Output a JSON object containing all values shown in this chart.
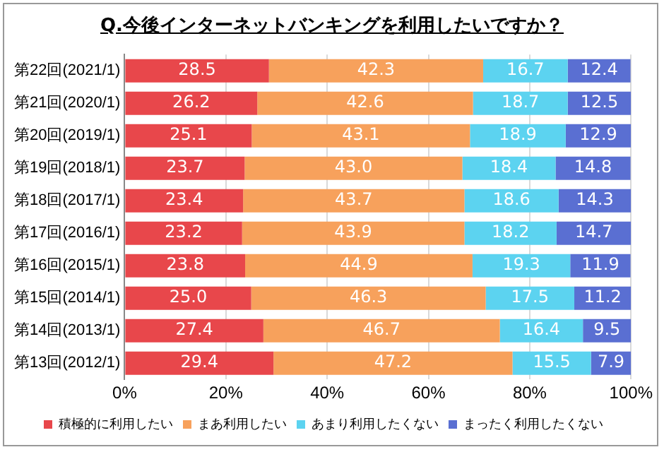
{
  "chart_data": {
    "type": "bar",
    "orientation": "horizontal",
    "stacked": true,
    "title": "Q.今後インターネットバンキングを利用したいですか？",
    "categories": [
      "第22回(2021/1)",
      "第21回(2020/1)",
      "第20回(2019/1)",
      "第19回(2018/1)",
      "第18回(2017/1)",
      "第17回(2016/1)",
      "第16回(2015/1)",
      "第15回(2014/1)",
      "第14回(2013/1)",
      "第13回(2012/1)"
    ],
    "series": [
      {
        "name": "積極的に利用したい",
        "color": "#e8474b",
        "values": [
          28.5,
          26.2,
          25.1,
          23.7,
          23.4,
          23.2,
          23.8,
          25.0,
          27.4,
          29.4
        ],
        "value_labels": [
          "28.5",
          "26.2",
          "25.1",
          "23.7",
          "23.4",
          "23.2",
          "23.8",
          "25.0",
          "27.4",
          "29.4"
        ]
      },
      {
        "name": "まあ利用したい",
        "color": "#f7a15c",
        "values": [
          42.3,
          42.6,
          43.1,
          43.0,
          43.7,
          43.9,
          44.9,
          46.3,
          46.7,
          47.2
        ],
        "value_labels": [
          "42.3",
          "42.6",
          "43.1",
          "43.0",
          "43.7",
          "43.9",
          "44.9",
          "46.3",
          "46.7",
          "47.2"
        ]
      },
      {
        "name": "あまり利用したくない",
        "color": "#5cd3f0",
        "values": [
          16.7,
          18.7,
          18.9,
          18.4,
          18.6,
          18.2,
          19.3,
          17.5,
          16.4,
          15.5
        ],
        "value_labels": [
          "16.7",
          "18.7",
          "18.9",
          "18.4",
          "18.6",
          "18.2",
          "19.3",
          "17.5",
          "16.4",
          "15.5"
        ]
      },
      {
        "name": "まったく利用したくない",
        "color": "#5a6fd2",
        "values": [
          12.4,
          12.5,
          12.9,
          14.8,
          14.3,
          14.7,
          11.9,
          11.2,
          9.5,
          7.9
        ],
        "value_labels": [
          "12.4",
          "12.5",
          "12.9",
          "14.8",
          "14.3",
          "14.7",
          "11.9",
          "11.2",
          "9.5",
          "7.9"
        ]
      }
    ],
    "xlim": [
      0,
      100
    ],
    "xticks": [
      {
        "value": 0,
        "label": "0%"
      },
      {
        "value": 20,
        "label": "20%"
      },
      {
        "value": 40,
        "label": "40%"
      },
      {
        "value": 60,
        "label": "60%"
      },
      {
        "value": 80,
        "label": "80%"
      },
      {
        "value": 100,
        "label": "100%"
      }
    ],
    "grid": "x",
    "legend": "bottom"
  }
}
